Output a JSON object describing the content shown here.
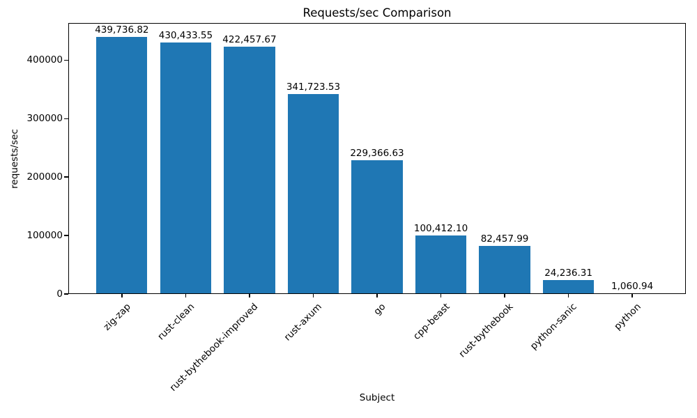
{
  "chart_data": {
    "type": "bar",
    "title": "Requests/sec Comparison",
    "xlabel": "Subject",
    "ylabel": "requests/sec",
    "categories": [
      "zig-zap",
      "rust-clean",
      "rust-bythebook-improved",
      "rust-axum",
      "go",
      "cpp-beast",
      "rust-bythebook",
      "python-sanic",
      "python"
    ],
    "values": [
      439736.82,
      430433.55,
      422457.67,
      341723.53,
      229366.63,
      100412.1,
      82457.99,
      24236.31,
      1060.94
    ],
    "value_labels": [
      "439,736.82",
      "430,433.55",
      "422,457.67",
      "341,723.53",
      "229,366.63",
      "100,412.10",
      "82,457.99",
      "24,236.31",
      "1,060.94"
    ],
    "yticks": [
      0,
      100000,
      200000,
      300000,
      400000
    ],
    "ytick_labels": [
      "0",
      "100000",
      "200000",
      "300000",
      "400000"
    ],
    "ylim": [
      0,
      463500
    ],
    "bar_color": "#1f77b4",
    "bar_width_fraction": 0.8,
    "x_tick_rotation_deg": 45,
    "grid": false,
    "legend_position": "none"
  }
}
